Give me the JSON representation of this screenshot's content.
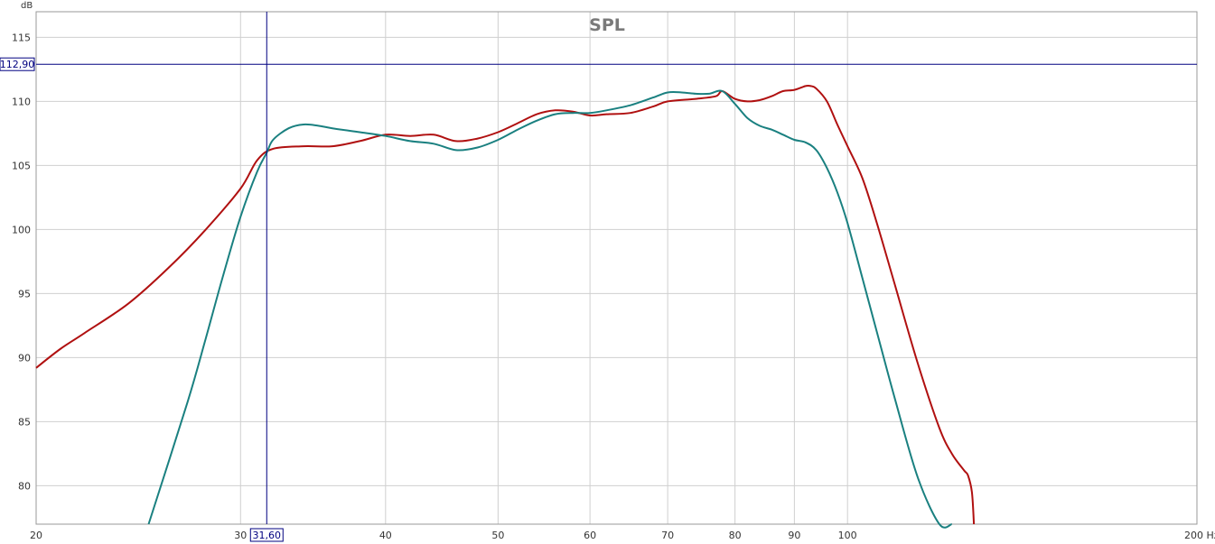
{
  "chart_data": {
    "type": "line",
    "title": "SPL",
    "ylabel": "dB",
    "xunit": "Hz",
    "xscale": "log",
    "xlim": [
      20,
      200
    ],
    "ylim": [
      77,
      117
    ],
    "grid": true,
    "x_ticks": [
      {
        "v": 20,
        "label": "20"
      },
      {
        "v": 30,
        "label": "30"
      },
      {
        "v": 40,
        "label": "40"
      },
      {
        "v": 50,
        "label": "50"
      },
      {
        "v": 60,
        "label": "60"
      },
      {
        "v": 70,
        "label": "70"
      },
      {
        "v": 80,
        "label": "80"
      },
      {
        "v": 90,
        "label": "90"
      },
      {
        "v": 100,
        "label": "100"
      },
      {
        "v": 200,
        "label": "200 Hz"
      }
    ],
    "y_ticks": [
      {
        "v": 80,
        "label": "80"
      },
      {
        "v": 85,
        "label": "85"
      },
      {
        "v": 90,
        "label": "90"
      },
      {
        "v": 95,
        "label": "95"
      },
      {
        "v": 100,
        "label": "100"
      },
      {
        "v": 105,
        "label": "105"
      },
      {
        "v": 110,
        "label": "110"
      },
      {
        "v": 115,
        "label": "115"
      }
    ],
    "cursor": {
      "x": 31.6,
      "x_label": "31,60",
      "y": 112.9,
      "y_label": "112,90",
      "color": "#000080"
    },
    "series": [
      {
        "color": "#b01010",
        "x": [
          20,
          21,
          22,
          24,
          26,
          28,
          30,
          31,
          32,
          34,
          36,
          38,
          40,
          42,
          44,
          46,
          48,
          50,
          52,
          54,
          56,
          58,
          60,
          62,
          65,
          68,
          70,
          74,
          77,
          78,
          80,
          82,
          84,
          86,
          88,
          90,
          92,
          93,
          94,
          96,
          98,
          100,
          103,
          106,
          110,
          115,
          120,
          123,
          126,
          127,
          128,
          128.5
        ],
        "y": [
          89.2,
          90.7,
          91.9,
          94.2,
          97.0,
          100.0,
          103.2,
          105.4,
          106.3,
          106.5,
          106.5,
          106.9,
          107.4,
          107.3,
          107.4,
          106.9,
          107.1,
          107.6,
          108.3,
          109.0,
          109.3,
          109.2,
          108.9,
          109.0,
          109.1,
          109.6,
          110.0,
          110.2,
          110.4,
          110.8,
          110.2,
          110.0,
          110.1,
          110.4,
          110.8,
          110.9,
          111.2,
          111.2,
          111.0,
          110.0,
          108.2,
          106.5,
          104.0,
          100.5,
          95.5,
          89.5,
          84.5,
          82.5,
          81.2,
          80.8,
          79.5,
          77.0
        ]
      },
      {
        "color": "#1a8080",
        "x": [
          25,
          27,
          28,
          29,
          30,
          31,
          31.6,
          32,
          33,
          34,
          35,
          36,
          38,
          40,
          42,
          44,
          46,
          48,
          50,
          52,
          54,
          56,
          58,
          60,
          62,
          65,
          68,
          70,
          72,
          74,
          76,
          78,
          80,
          82,
          84,
          86,
          88,
          90,
          92,
          94,
          96,
          98,
          100,
          103,
          106,
          110,
          115,
          120,
          123
        ],
        "y": [
          77.0,
          86.5,
          91.5,
          96.5,
          101.0,
          104.5,
          106.0,
          107.0,
          107.9,
          108.2,
          108.1,
          107.9,
          107.6,
          107.3,
          106.9,
          106.7,
          106.2,
          106.4,
          107.0,
          107.8,
          108.5,
          109.0,
          109.1,
          109.1,
          109.3,
          109.7,
          110.3,
          110.7,
          110.7,
          110.6,
          110.6,
          110.8,
          109.8,
          108.7,
          108.1,
          107.8,
          107.4,
          107.0,
          106.8,
          106.2,
          104.8,
          102.9,
          100.5,
          96.2,
          92.0,
          86.6,
          80.6,
          77.0,
          77.0
        ]
      }
    ]
  }
}
